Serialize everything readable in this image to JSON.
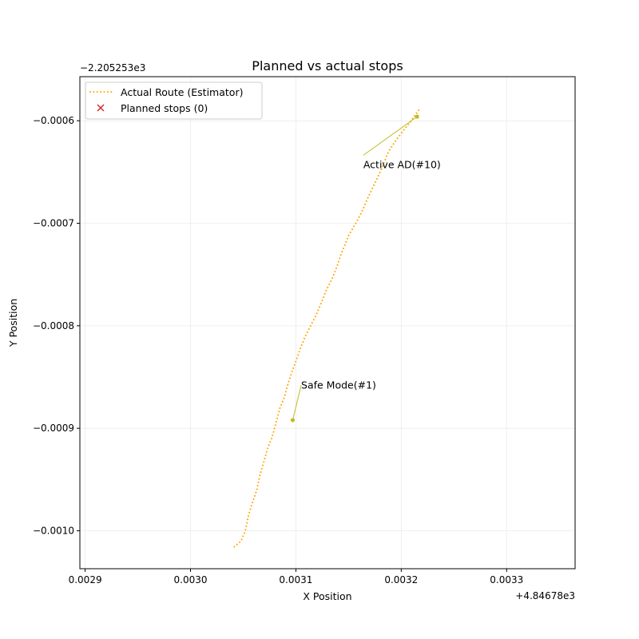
{
  "chart_data": {
    "type": "line",
    "title": "Planned vs actual stops",
    "xlabel": "X Position",
    "ylabel": "Y Position",
    "x_offset_label": "+4.84678e3",
    "y_offset_label": "−2.205253e3",
    "xlim": [
      0.002895,
      0.003365
    ],
    "ylim": [
      -0.001037,
      -0.000557
    ],
    "x_ticks": [
      0.0029,
      0.003,
      0.0031,
      0.0032,
      0.0033
    ],
    "x_tick_labels": [
      "0.0029",
      "0.0030",
      "0.0031",
      "0.0032",
      "0.0033"
    ],
    "y_ticks": [
      -0.0006,
      -0.0007,
      -0.0008,
      -0.0009,
      -0.001
    ],
    "y_tick_labels": [
      "−0.0006",
      "−0.0007",
      "−0.0008",
      "−0.0009",
      "−0.0010"
    ],
    "grid": true,
    "legend_position": "upper-left",
    "series": [
      {
        "name": "Actual Route (Estimator)",
        "style": "dotted",
        "color": "#ffa500",
        "x": [
          0.003041,
          0.003048,
          0.003052,
          0.003055,
          0.003058,
          0.003063,
          0.003066,
          0.003069,
          0.003073,
          0.003077,
          0.003081,
          0.003085,
          0.003089,
          0.003093,
          0.003097,
          0.003101,
          0.003105,
          0.003109,
          0.003114,
          0.003119,
          0.003124,
          0.003129,
          0.003134,
          0.003139,
          0.003143,
          0.003147,
          0.00315,
          0.003154,
          0.003158,
          0.003163,
          0.003168,
          0.003174,
          0.00318,
          0.003184,
          0.003188,
          0.003193,
          0.003198,
          0.003203,
          0.003208,
          0.003212,
          0.003215,
          0.003217
        ],
        "y": [
          -0.001016,
          -0.00101,
          -0.001,
          -0.000985,
          -0.000975,
          -0.00096,
          -0.000945,
          -0.000935,
          -0.00092,
          -0.00091,
          -0.000895,
          -0.00088,
          -0.00087,
          -0.000855,
          -0.000843,
          -0.000832,
          -0.00082,
          -0.00081,
          -0.0008,
          -0.00079,
          -0.000778,
          -0.000765,
          -0.000755,
          -0.000742,
          -0.00073,
          -0.00072,
          -0.000712,
          -0.000705,
          -0.000698,
          -0.000688,
          -0.000676,
          -0.000663,
          -0.00065,
          -0.00064,
          -0.00063,
          -0.000622,
          -0.000615,
          -0.000608,
          -0.000602,
          -0.000596,
          -0.000592,
          -0.000589
        ]
      },
      {
        "name": "Planned stops (0)",
        "marker": "x",
        "color": "#d62728",
        "x": [],
        "y": []
      }
    ],
    "annotations": [
      {
        "text": "Safe Mode(#1)",
        "point": [
          0.003097,
          -0.000892
        ],
        "text_at": [
          0.003105,
          -0.000858
        ],
        "color": "#bcbd22"
      },
      {
        "text": "Active AD(#10)",
        "point": [
          0.003215,
          -0.000596
        ],
        "text_at": [
          0.003164,
          -0.000643
        ],
        "color": "#bcbd22"
      }
    ]
  }
}
